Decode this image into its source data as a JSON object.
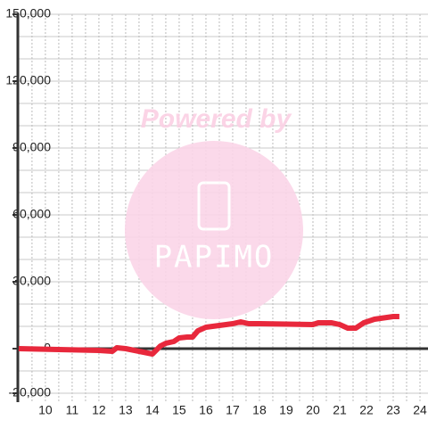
{
  "chart_data": {
    "type": "line",
    "watermark": {
      "line1": "Powered by",
      "line2": "PAPIMO"
    },
    "x": [
      9,
      12,
      12.5,
      12.67,
      13,
      13.5,
      14,
      14.3,
      14.5,
      14.8,
      15,
      15.3,
      15.5,
      15.7,
      16,
      16.5,
      17,
      17.3,
      17.6,
      18,
      20,
      20.2,
      20.7,
      21,
      21.3,
      21.6,
      21.9,
      22.3,
      23,
      23.23
    ],
    "series": [
      {
        "color": "#e8283c",
        "values": [
          0,
          -800,
          -1200,
          400,
          0,
          -1200,
          -2400,
          1200,
          2400,
          3200,
          4800,
          5200,
          5200,
          8000,
          9600,
          10400,
          11200,
          12000,
          11200,
          11200,
          10800,
          11600,
          11600,
          10800,
          9200,
          9200,
          11600,
          13200,
          14400,
          14400
        ]
      }
    ],
    "xlim": [
      8.97,
      24.3
    ],
    "xticks": [
      10,
      11,
      12,
      13,
      14,
      15,
      16,
      17,
      18,
      19,
      20,
      21,
      22,
      23,
      24
    ],
    "ylim": [
      -24000,
      150000
    ],
    "yticks": [
      {
        "value": -20000,
        "label": "-20,000"
      },
      0,
      {
        "value": 30000,
        "label": "30,000"
      },
      {
        "value": 60000,
        "label": "60,000"
      },
      {
        "value": 90000,
        "label": "90,000"
      },
      {
        "value": 120000,
        "label": "120,000"
      },
      {
        "value": 150000,
        "label": "150,000"
      }
    ],
    "grid": true
  }
}
